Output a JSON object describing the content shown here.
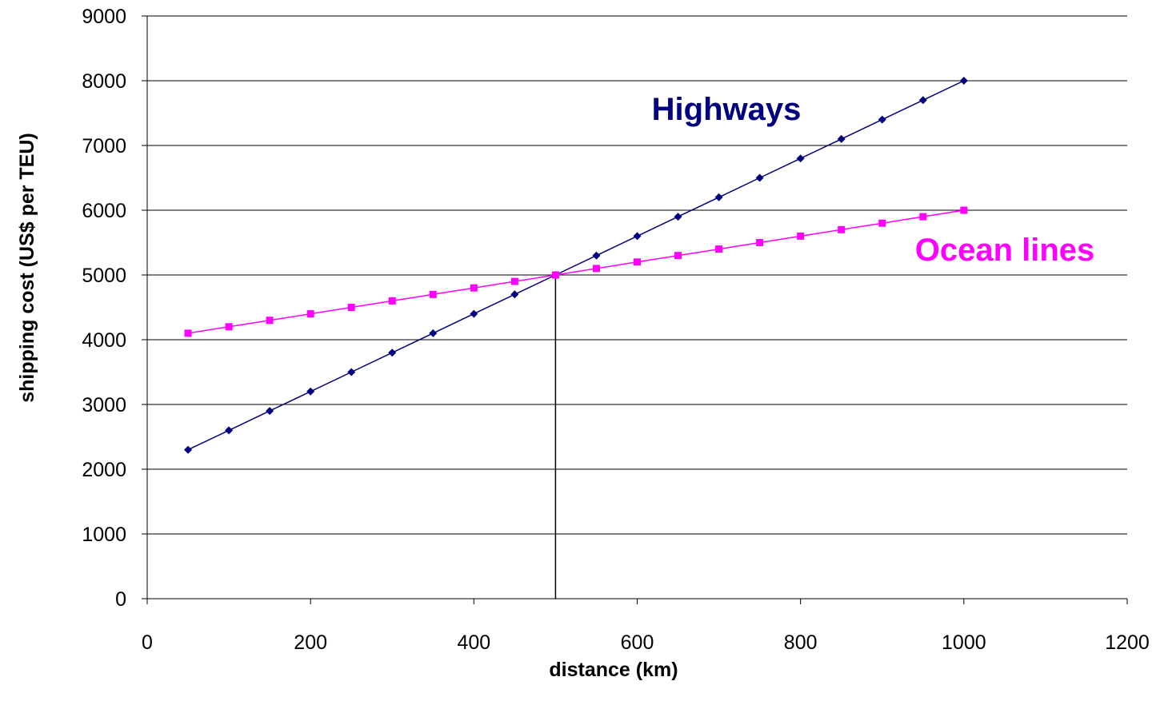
{
  "chart_data": {
    "type": "line",
    "xlabel": "distance (km)",
    "ylabel": "shipping cost (US$ per TEU)",
    "xlim": [
      0,
      1200
    ],
    "ylim": [
      0,
      9000
    ],
    "x_ticks": [
      0,
      200,
      400,
      600,
      800,
      1000,
      1200
    ],
    "y_ticks": [
      0,
      1000,
      2000,
      3000,
      4000,
      5000,
      6000,
      7000,
      8000,
      9000
    ],
    "grid": "horizontal",
    "legend": "none",
    "reference_line": {
      "x": 500
    },
    "series": [
      {
        "name": "Highways",
        "color": "#000080",
        "marker": "diamond",
        "x": [
          50,
          100,
          150,
          200,
          250,
          300,
          350,
          400,
          450,
          500,
          550,
          600,
          650,
          700,
          750,
          800,
          850,
          900,
          950,
          1000
        ],
        "values": [
          2300,
          2600,
          2900,
          3200,
          3500,
          3800,
          4100,
          4400,
          4700,
          5000,
          5300,
          5600,
          5900,
          6200,
          6500,
          6800,
          7100,
          7400,
          7700,
          8000
        ]
      },
      {
        "name": "Ocean lines",
        "color": "#FF00FF",
        "marker": "square",
        "x": [
          50,
          100,
          150,
          200,
          250,
          300,
          350,
          400,
          450,
          500,
          550,
          600,
          650,
          700,
          750,
          800,
          850,
          900,
          950,
          1000
        ],
        "values": [
          4100,
          4200,
          4300,
          4400,
          4500,
          4600,
          4700,
          4800,
          4900,
          5000,
          5100,
          5200,
          5300,
          5400,
          5500,
          5600,
          5700,
          5800,
          5900,
          6000
        ]
      }
    ]
  }
}
